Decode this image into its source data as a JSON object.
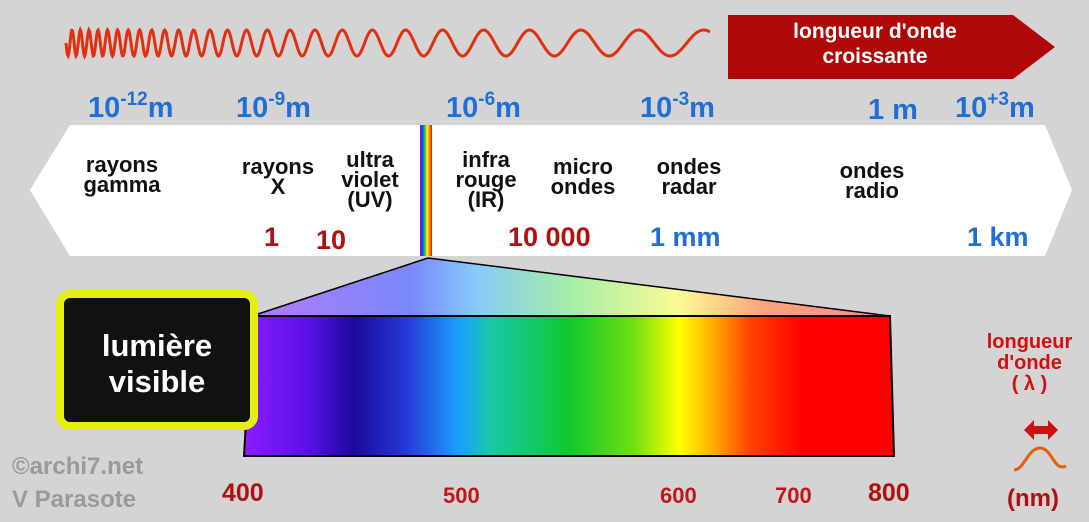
{
  "header": {
    "arrow_text_line1": "longueur d'onde",
    "arrow_text_line2": "croissante"
  },
  "scale_labels": [
    {
      "base": "10",
      "exp": "-12",
      "unit": "m"
    },
    {
      "base": "10",
      "exp": "-9",
      "unit": "m"
    },
    {
      "base": "10",
      "exp": "-6",
      "unit": "m"
    },
    {
      "base": "10",
      "exp": "-3",
      "unit": "m"
    },
    {
      "base": "1 m",
      "exp": "",
      "unit": ""
    },
    {
      "base": "10",
      "exp": "+3",
      "unit": "m"
    }
  ],
  "bands": {
    "gamma": {
      "line1": "rayons",
      "line2": "gamma"
    },
    "xray": {
      "line1": "rayons",
      "line2": "X"
    },
    "uv": {
      "line1": "ultra",
      "line2": "violet",
      "line3": "(UV)"
    },
    "ir": {
      "line1": "infra",
      "line2": "rouge",
      "line3": "(IR)"
    },
    "micro": {
      "line1": "micro",
      "line2": "ondes"
    },
    "radar": {
      "line1": "ondes",
      "line2": "radar"
    },
    "radio": {
      "line1": "ondes",
      "line2": "radio"
    }
  },
  "band_values": {
    "v1": "1",
    "v10": "10",
    "v10000": "10 000",
    "mm": "1 mm",
    "km": "1 km"
  },
  "visible_box": {
    "line1": "lumière",
    "line2": "visible"
  },
  "nm_ticks": [
    "400",
    "500",
    "600",
    "700",
    "800"
  ],
  "right_legend": {
    "line1": "longueur",
    "line2": "d'onde",
    "line3": "( λ )",
    "unit": "(nm)"
  },
  "credits": {
    "line1": "©archi7.net",
    "line2": "V Parasote"
  },
  "colors": {
    "background": "#d4d4d4",
    "scale_blue": "#1f6fd8",
    "value_red": "#b01010",
    "arrow_red": "#b00808",
    "box_border": "#e6f010"
  }
}
